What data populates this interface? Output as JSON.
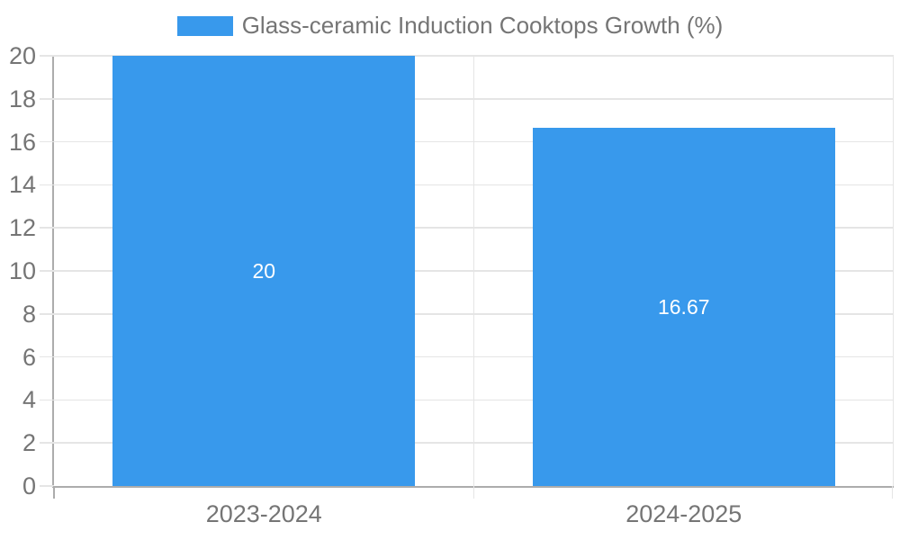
{
  "colors": {
    "bar": "#3899EC",
    "grid": "#E5E5E5",
    "axis": "#ACACAC",
    "tick_text": "#757575",
    "legend_text": "#757575",
    "data_label": "#FFFFFF",
    "background": "#FFFFFF"
  },
  "chart_data": {
    "type": "bar",
    "title": "",
    "categories": [
      "2023-2024",
      "2024-2025"
    ],
    "series": [
      {
        "name": "Glass-ceramic Induction Cooktops Growth (%)",
        "values": [
          20,
          16.67
        ],
        "value_labels": [
          "20",
          "16.67"
        ],
        "color": "#3899EC"
      }
    ],
    "ylim": [
      0,
      20
    ],
    "yticks": [
      0,
      2,
      4,
      6,
      8,
      10,
      12,
      14,
      16,
      18,
      20
    ],
    "grid": true,
    "legend_position": "top",
    "value_labels_inside_bars": true
  }
}
